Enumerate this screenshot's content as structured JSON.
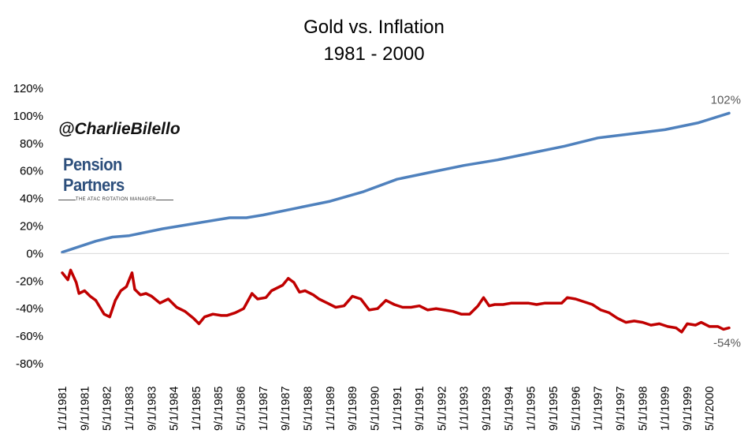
{
  "header": {
    "title": "Gold vs. Inflation",
    "subtitle": "1981 - 2000"
  },
  "watermark": {
    "handle": "@CharlieBilello",
    "logo_name": "Pension Partners",
    "logo_tagline": "THE ATAC ROTATION MANAGER"
  },
  "colors": {
    "inflation": "#4f81bd",
    "gold": "#c00000",
    "axis": "#000000",
    "end_label": "#595959"
  },
  "chart_data": {
    "type": "line",
    "title": "Gold vs. Inflation",
    "subtitle": "1981 - 2000",
    "xlabel": "",
    "ylabel": "",
    "ylim": [
      -80,
      120
    ],
    "y_ticks": [
      -80,
      -60,
      -40,
      -20,
      0,
      20,
      40,
      60,
      80,
      100,
      120
    ],
    "y_tick_labels": [
      "-80%",
      "-60%",
      "-40%",
      "-20%",
      "0%",
      "20%",
      "40%",
      "60%",
      "80%",
      "100%",
      "120%"
    ],
    "x_tick_labels": [
      "1/1/1981",
      "9/1/1981",
      "5/1/1982",
      "1/1/1983",
      "9/1/1983",
      "5/1/1984",
      "1/1/1985",
      "9/1/1985",
      "5/1/1986",
      "1/1/1987",
      "9/1/1987",
      "5/1/1988",
      "1/1/1989",
      "9/1/1989",
      "5/1/1990",
      "1/1/1991",
      "9/1/1991",
      "5/1/1992",
      "1/1/1993",
      "9/1/1993",
      "5/1/1994",
      "1/1/1995",
      "9/1/1995",
      "5/1/1996",
      "1/1/1997",
      "9/1/1997",
      "5/1/1998",
      "1/1/1999",
      "9/1/1999",
      "5/1/2000"
    ],
    "x_range": [
      "1/1/1981",
      "12/1/2000"
    ],
    "grid": false,
    "legend": "none",
    "end_labels": {
      "inflation": "102%",
      "gold": "-54%"
    },
    "series": [
      {
        "key": "inflation",
        "color": "#4f81bd",
        "points": [
          [
            "1/1/1981",
            1
          ],
          [
            "1/1/1982",
            9
          ],
          [
            "7/1/1982",
            12
          ],
          [
            "1/1/1983",
            13
          ],
          [
            "1/1/1984",
            18
          ],
          [
            "1/1/1985",
            22
          ],
          [
            "1/1/1986",
            26
          ],
          [
            "7/1/1986",
            26
          ],
          [
            "1/1/1987",
            28
          ],
          [
            "1/1/1988",
            33
          ],
          [
            "1/1/1989",
            38
          ],
          [
            "1/1/1990",
            45
          ],
          [
            "1/1/1991",
            54
          ],
          [
            "1/1/1992",
            59
          ],
          [
            "1/1/1993",
            64
          ],
          [
            "1/1/1994",
            68
          ],
          [
            "1/1/1995",
            73
          ],
          [
            "1/1/1996",
            78
          ],
          [
            "1/1/1997",
            84
          ],
          [
            "1/1/1998",
            87
          ],
          [
            "1/1/1999",
            90
          ],
          [
            "1/1/2000",
            95
          ],
          [
            "12/1/2000",
            102
          ]
        ]
      },
      {
        "key": "gold",
        "color": "#c00000",
        "points": [
          [
            "1/1/1981",
            -14
          ],
          [
            "3/1/1981",
            -19
          ],
          [
            "4/1/1981",
            -12
          ],
          [
            "6/1/1981",
            -21
          ],
          [
            "7/1/1981",
            -29
          ],
          [
            "9/1/1981",
            -27
          ],
          [
            "11/1/1981",
            -31
          ],
          [
            "1/1/1982",
            -34
          ],
          [
            "4/1/1982",
            -44
          ],
          [
            "6/1/1982",
            -46
          ],
          [
            "8/1/1982",
            -34
          ],
          [
            "10/1/1982",
            -27
          ],
          [
            "12/1/1982",
            -24
          ],
          [
            "2/1/1983",
            -14
          ],
          [
            "3/1/1983",
            -26
          ],
          [
            "5/1/1983",
            -30
          ],
          [
            "7/1/1983",
            -29
          ],
          [
            "9/1/1983",
            -31
          ],
          [
            "12/1/1983",
            -36
          ],
          [
            "3/1/1984",
            -33
          ],
          [
            "6/1/1984",
            -39
          ],
          [
            "9/1/1984",
            -42
          ],
          [
            "12/1/1984",
            -47
          ],
          [
            "2/1/1985",
            -51
          ],
          [
            "4/1/1985",
            -46
          ],
          [
            "7/1/1985",
            -44
          ],
          [
            "10/1/1985",
            -45
          ],
          [
            "12/1/1985",
            -45
          ],
          [
            "3/1/1986",
            -43
          ],
          [
            "6/1/1986",
            -40
          ],
          [
            "9/1/1986",
            -29
          ],
          [
            "11/1/1986",
            -33
          ],
          [
            "2/1/1987",
            -32
          ],
          [
            "4/1/1987",
            -27
          ],
          [
            "6/1/1987",
            -25
          ],
          [
            "8/1/1987",
            -23
          ],
          [
            "10/1/1987",
            -18
          ],
          [
            "12/1/1987",
            -21
          ],
          [
            "2/1/1988",
            -28
          ],
          [
            "4/1/1988",
            -27
          ],
          [
            "7/1/1988",
            -30
          ],
          [
            "9/1/1988",
            -33
          ],
          [
            "12/1/1988",
            -36
          ],
          [
            "3/1/1989",
            -39
          ],
          [
            "6/1/1989",
            -38
          ],
          [
            "9/1/1989",
            -31
          ],
          [
            "12/1/1989",
            -33
          ],
          [
            "3/1/1990",
            -41
          ],
          [
            "6/1/1990",
            -40
          ],
          [
            "9/1/1990",
            -34
          ],
          [
            "12/1/1990",
            -37
          ],
          [
            "3/1/1991",
            -39
          ],
          [
            "6/1/1991",
            -39
          ],
          [
            "9/1/1991",
            -38
          ],
          [
            "12/1/1991",
            -41
          ],
          [
            "3/1/1992",
            -40
          ],
          [
            "6/1/1992",
            -41
          ],
          [
            "9/1/1992",
            -42
          ],
          [
            "12/1/1992",
            -44
          ],
          [
            "3/1/1993",
            -44
          ],
          [
            "6/1/1993",
            -38
          ],
          [
            "8/1/1993",
            -32
          ],
          [
            "10/1/1993",
            -38
          ],
          [
            "12/1/1993",
            -37
          ],
          [
            "3/1/1994",
            -37
          ],
          [
            "6/1/1994",
            -36
          ],
          [
            "9/1/1994",
            -36
          ],
          [
            "12/1/1994",
            -36
          ],
          [
            "3/1/1995",
            -37
          ],
          [
            "6/1/1995",
            -36
          ],
          [
            "9/1/1995",
            -36
          ],
          [
            "12/1/1995",
            -36
          ],
          [
            "2/1/1996",
            -32
          ],
          [
            "5/1/1996",
            -33
          ],
          [
            "8/1/1996",
            -35
          ],
          [
            "11/1/1996",
            -37
          ],
          [
            "2/1/1997",
            -41
          ],
          [
            "5/1/1997",
            -43
          ],
          [
            "8/1/1997",
            -47
          ],
          [
            "11/1/1997",
            -50
          ],
          [
            "2/1/1998",
            -49
          ],
          [
            "5/1/1998",
            -50
          ],
          [
            "8/1/1998",
            -52
          ],
          [
            "11/1/1998",
            -51
          ],
          [
            "2/1/1999",
            -53
          ],
          [
            "5/1/1999",
            -54
          ],
          [
            "7/1/1999",
            -57
          ],
          [
            "9/1/1999",
            -51
          ],
          [
            "12/1/1999",
            -52
          ],
          [
            "2/1/2000",
            -50
          ],
          [
            "5/1/2000",
            -53
          ],
          [
            "8/1/2000",
            -53
          ],
          [
            "10/1/2000",
            -55
          ],
          [
            "12/1/2000",
            -54
          ]
        ]
      }
    ]
  }
}
